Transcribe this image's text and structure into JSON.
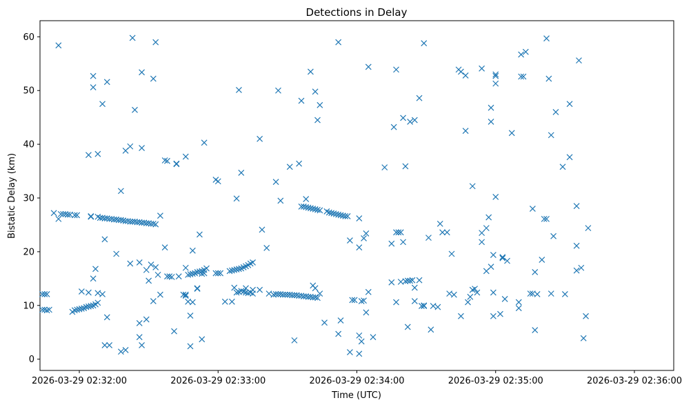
{
  "chart_data": {
    "type": "scatter",
    "title": "Detections in Delay",
    "xlabel": "Time (UTC)",
    "ylabel": "Bistatic Delay (km)",
    "x_ticks": [
      "2026-03-29 02:32:00",
      "2026-03-29 02:33:00",
      "2026-03-29 02:34:00",
      "2026-03-29 02:35:00",
      "2026-03-29 02:36:00"
    ],
    "y_ticks": [
      0,
      10,
      20,
      30,
      40,
      50,
      60
    ],
    "xlim": [
      "2026-03-29 02:31:43",
      "2026-03-29 02:36:17"
    ],
    "ylim": [
      -2.1,
      63
    ],
    "marker": "x",
    "color": "#1f77b4",
    "grid": false,
    "points": [
      [
        "02:31:44",
        12.1
      ],
      [
        "02:31:45",
        12.1
      ],
      [
        "02:31:46",
        12.1
      ],
      [
        "02:31:44",
        9.2
      ],
      [
        "02:31:45",
        9.2
      ],
      [
        "02:31:46",
        9.1
      ],
      [
        "02:31:47",
        9.2
      ],
      [
        "02:31:49",
        27.2
      ],
      [
        "02:31:51",
        26.1
      ],
      [
        "02:31:52",
        27.0
      ],
      [
        "02:31:53",
        27.0
      ],
      [
        "02:31:54",
        27.0
      ],
      [
        "02:31:55",
        26.9
      ],
      [
        "02:31:56",
        26.9
      ],
      [
        "02:31:58",
        26.8
      ],
      [
        "02:31:59",
        26.8
      ],
      [
        "02:31:51",
        58.4
      ],
      [
        "02:31:57",
        8.8
      ],
      [
        "02:31:58",
        9.1
      ],
      [
        "02:31:59",
        9.2
      ],
      [
        "02:32:00",
        9.3
      ],
      [
        "02:32:01",
        9.4
      ],
      [
        "02:32:02",
        9.5
      ],
      [
        "02:32:03",
        9.7
      ],
      [
        "02:32:04",
        9.8
      ],
      [
        "02:32:05",
        9.9
      ],
      [
        "02:32:06",
        10.0
      ],
      [
        "02:32:07",
        10.2
      ],
      [
        "02:32:08",
        10.5
      ],
      [
        "02:32:01",
        12.6
      ],
      [
        "02:32:04",
        12.4
      ],
      [
        "02:32:06",
        15.0
      ],
      [
        "02:32:07",
        16.8
      ],
      [
        "02:32:08",
        12.3
      ],
      [
        "02:32:10",
        12.1
      ],
      [
        "02:32:04",
        38.0
      ],
      [
        "02:32:05",
        26.5
      ],
      [
        "02:32:05",
        26.6
      ],
      [
        "02:32:06",
        52.7
      ],
      [
        "02:32:06",
        50.6
      ],
      [
        "02:32:08",
        38.2
      ],
      [
        "02:32:10",
        47.5
      ],
      [
        "02:32:11",
        22.3
      ],
      [
        "02:32:12",
        51.6
      ],
      [
        "02:32:11",
        2.6
      ],
      [
        "02:32:13",
        2.6
      ],
      [
        "02:32:12",
        7.8
      ],
      [
        "02:32:08",
        26.5
      ],
      [
        "02:32:09",
        26.3
      ],
      [
        "02:32:10",
        26.3
      ],
      [
        "02:32:11",
        26.2
      ],
      [
        "02:32:12",
        26.2
      ],
      [
        "02:32:13",
        26.1
      ],
      [
        "02:32:14",
        26.1
      ],
      [
        "02:32:15",
        26.0
      ],
      [
        "02:32:16",
        26.0
      ],
      [
        "02:32:17",
        25.9
      ],
      [
        "02:32:18",
        25.9
      ],
      [
        "02:32:19",
        25.8
      ],
      [
        "02:32:20",
        25.7
      ],
      [
        "02:32:21",
        25.7
      ],
      [
        "02:32:22",
        25.6
      ],
      [
        "02:32:23",
        25.6
      ],
      [
        "02:32:24",
        25.6
      ],
      [
        "02:32:25",
        25.5
      ],
      [
        "02:32:26",
        25.5
      ],
      [
        "02:32:27",
        25.4
      ],
      [
        "02:32:28",
        25.4
      ],
      [
        "02:32:29",
        25.3
      ],
      [
        "02:32:30",
        25.3
      ],
      [
        "02:32:31",
        25.2
      ],
      [
        "02:32:32",
        25.2
      ],
      [
        "02:32:33",
        25.1
      ],
      [
        "02:32:16",
        19.6
      ],
      [
        "02:32:18",
        31.3
      ],
      [
        "02:32:18",
        1.4
      ],
      [
        "02:32:20",
        1.7
      ],
      [
        "02:32:20",
        38.8
      ],
      [
        "02:32:22",
        17.8
      ],
      [
        "02:32:22",
        39.6
      ],
      [
        "02:32:23",
        59.8
      ],
      [
        "02:32:24",
        46.4
      ],
      [
        "02:32:26",
        18.0
      ],
      [
        "02:32:26",
        6.7
      ],
      [
        "02:32:26",
        4.1
      ],
      [
        "02:32:27",
        53.4
      ],
      [
        "02:32:27",
        39.3
      ],
      [
        "02:32:27",
        2.6
      ],
      [
        "02:32:29",
        7.4
      ],
      [
        "02:32:29",
        16.6
      ],
      [
        "02:32:30",
        14.6
      ],
      [
        "02:32:31",
        17.6
      ],
      [
        "02:32:32",
        52.2
      ],
      [
        "02:32:32",
        10.8
      ],
      [
        "02:32:33",
        59.0
      ],
      [
        "02:32:33",
        17.1
      ],
      [
        "02:32:34",
        15.7
      ],
      [
        "02:32:35",
        12.0
      ],
      [
        "02:32:35",
        26.7
      ],
      [
        "02:32:37",
        20.8
      ],
      [
        "02:32:37",
        37.0
      ],
      [
        "02:32:38",
        36.9
      ],
      [
        "02:32:38",
        15.4
      ],
      [
        "02:32:39",
        15.4
      ],
      [
        "02:32:40",
        15.3
      ],
      [
        "02:32:41",
        5.2
      ],
      [
        "02:32:42",
        36.4
      ],
      [
        "02:32:42",
        36.3
      ],
      [
        "02:32:43",
        15.4
      ],
      [
        "02:32:46",
        37.7
      ],
      [
        "02:32:45",
        12.0
      ],
      [
        "02:32:46",
        12.0
      ],
      [
        "02:32:46",
        17.0
      ],
      [
        "02:32:46",
        11.8
      ],
      [
        "02:32:47",
        10.7
      ],
      [
        "02:32:48",
        8.1
      ],
      [
        "02:32:48",
        2.4
      ],
      [
        "02:32:49",
        20.2
      ],
      [
        "02:32:49",
        10.6
      ],
      [
        "02:32:51",
        13.2
      ],
      [
        "02:32:51",
        13.1
      ],
      [
        "02:32:52",
        23.2
      ],
      [
        "02:32:53",
        3.7
      ],
      [
        "02:32:54",
        40.3
      ],
      [
        "02:32:47",
        15.7
      ],
      [
        "02:32:48",
        15.8
      ],
      [
        "02:32:49",
        15.9
      ],
      [
        "02:32:50",
        16.0
      ],
      [
        "02:32:51",
        16.2
      ],
      [
        "02:32:52",
        16.3
      ],
      [
        "02:32:53",
        16.4
      ],
      [
        "02:32:54",
        16.6
      ],
      [
        "02:32:55",
        16.9
      ],
      [
        "02:32:54",
        16.0
      ],
      [
        "02:32:53",
        15.9
      ],
      [
        "02:32:59",
        33.4
      ],
      [
        "02:33:00",
        33.1
      ],
      [
        "02:32:59",
        16.0
      ],
      [
        "02:33:00",
        16.0
      ],
      [
        "02:33:01",
        16.0
      ],
      [
        "02:33:03",
        10.7
      ],
      [
        "02:33:06",
        10.7
      ],
      [
        "02:33:05",
        16.4
      ],
      [
        "02:33:06",
        16.5
      ],
      [
        "02:33:07",
        16.6
      ],
      [
        "02:33:08",
        16.7
      ],
      [
        "02:33:09",
        16.8
      ],
      [
        "02:33:10",
        16.9
      ],
      [
        "02:33:11",
        17.1
      ],
      [
        "02:33:12",
        17.3
      ],
      [
        "02:33:13",
        17.5
      ],
      [
        "02:33:14",
        17.8
      ],
      [
        "02:33:15",
        18.0
      ],
      [
        "02:33:07",
        13.3
      ],
      [
        "02:33:08",
        12.4
      ],
      [
        "02:33:09",
        12.5
      ],
      [
        "02:33:10",
        12.7
      ],
      [
        "02:33:11",
        12.6
      ],
      [
        "02:33:12",
        12.4
      ],
      [
        "02:33:12",
        13.2
      ],
      [
        "02:33:13",
        12.3
      ],
      [
        "02:33:14",
        12.4
      ],
      [
        "02:33:15",
        12.2
      ],
      [
        "02:33:15",
        12.9
      ],
      [
        "02:33:18",
        12.9
      ],
      [
        "02:33:08",
        29.9
      ],
      [
        "02:33:09",
        50.1
      ],
      [
        "02:33:10",
        34.7
      ],
      [
        "02:33:18",
        41.0
      ],
      [
        "02:33:19",
        24.1
      ],
      [
        "02:33:21",
        20.7
      ],
      [
        "02:33:22",
        12.2
      ],
      [
        "02:33:24",
        12.0
      ],
      [
        "02:33:25",
        12.1
      ],
      [
        "02:33:26",
        12.1
      ],
      [
        "02:33:27",
        12.1
      ],
      [
        "02:33:28",
        12.0
      ],
      [
        "02:33:29",
        12.0
      ],
      [
        "02:33:30",
        12.0
      ],
      [
        "02:33:31",
        12.0
      ],
      [
        "02:33:32",
        11.9
      ],
      [
        "02:33:33",
        11.9
      ],
      [
        "02:33:34",
        11.9
      ],
      [
        "02:33:35",
        11.8
      ],
      [
        "02:33:36",
        11.8
      ],
      [
        "02:33:37",
        11.7
      ],
      [
        "02:33:38",
        11.7
      ],
      [
        "02:33:39",
        11.6
      ],
      [
        "02:33:40",
        11.6
      ],
      [
        "02:33:41",
        11.5
      ],
      [
        "02:33:42",
        11.5
      ],
      [
        "02:33:43",
        11.4
      ],
      [
        "02:33:44",
        12.2
      ],
      [
        "02:33:25",
        33.0
      ],
      [
        "02:33:26",
        50.0
      ],
      [
        "02:33:27",
        29.5
      ],
      [
        "02:33:31",
        35.8
      ],
      [
        "02:33:33",
        3.5
      ],
      [
        "02:33:35",
        36.4
      ],
      [
        "02:33:36",
        48.1
      ],
      [
        "02:33:38",
        29.8
      ],
      [
        "02:33:40",
        53.5
      ],
      [
        "02:33:41",
        13.7
      ],
      [
        "02:33:42",
        13.2
      ],
      [
        "02:33:42",
        49.8
      ],
      [
        "02:33:43",
        44.5
      ],
      [
        "02:33:44",
        47.3
      ],
      [
        "02:33:46",
        6.8
      ],
      [
        "02:33:36",
        28.4
      ],
      [
        "02:33:37",
        28.4
      ],
      [
        "02:33:38",
        28.3
      ],
      [
        "02:33:39",
        28.2
      ],
      [
        "02:33:40",
        28.1
      ],
      [
        "02:33:41",
        28.0
      ],
      [
        "02:33:42",
        27.9
      ],
      [
        "02:33:43",
        27.8
      ],
      [
        "02:33:44",
        27.7
      ],
      [
        "02:33:47",
        27.5
      ],
      [
        "02:33:48",
        27.3
      ],
      [
        "02:33:49",
        27.2
      ],
      [
        "02:33:50",
        27.1
      ],
      [
        "02:33:51",
        27.0
      ],
      [
        "02:33:52",
        26.9
      ],
      [
        "02:33:53",
        26.8
      ],
      [
        "02:33:54",
        26.7
      ],
      [
        "02:33:55",
        26.6
      ],
      [
        "02:33:56",
        26.6
      ],
      [
        "02:33:52",
        59.0
      ],
      [
        "02:33:52",
        4.7
      ],
      [
        "02:33:53",
        7.2
      ],
      [
        "02:33:57",
        22.1
      ],
      [
        "02:33:57",
        1.3
      ],
      [
        "02:33:58",
        11.0
      ],
      [
        "02:33:59",
        11.0
      ],
      [
        "02:34:01",
        26.2
      ],
      [
        "02:34:01",
        20.8
      ],
      [
        "02:34:01",
        4.4
      ],
      [
        "02:34:01",
        1.0
      ],
      [
        "02:34:02",
        3.3
      ],
      [
        "02:34:02",
        10.8
      ],
      [
        "02:34:03",
        22.5
      ],
      [
        "02:34:03",
        10.9
      ],
      [
        "02:34:04",
        23.4
      ],
      [
        "02:34:04",
        8.7
      ],
      [
        "02:34:05",
        12.5
      ],
      [
        "02:34:05",
        54.4
      ],
      [
        "02:34:07",
        4.1
      ],
      [
        "02:34:12",
        35.7
      ],
      [
        "02:34:15",
        21.5
      ],
      [
        "02:34:15",
        14.3
      ],
      [
        "02:34:16",
        43.2
      ],
      [
        "02:34:17",
        53.9
      ],
      [
        "02:34:17",
        23.6
      ],
      [
        "02:34:17",
        10.6
      ],
      [
        "02:34:18",
        23.6
      ],
      [
        "02:34:19",
        23.6
      ],
      [
        "02:34:19",
        14.4
      ],
      [
        "02:34:20",
        44.9
      ],
      [
        "02:34:20",
        21.8
      ],
      [
        "02:34:21",
        35.9
      ],
      [
        "02:34:21",
        14.5
      ],
      [
        "02:34:22",
        6.0
      ],
      [
        "02:34:22",
        14.6
      ],
      [
        "02:34:23",
        44.2
      ],
      [
        "02:34:23",
        14.6
      ],
      [
        "02:34:24",
        14.7
      ],
      [
        "02:34:25",
        44.5
      ],
      [
        "02:34:25",
        13.3
      ],
      [
        "02:34:25",
        10.8
      ],
      [
        "02:34:27",
        48.6
      ],
      [
        "02:34:27",
        14.7
      ],
      [
        "02:34:28",
        9.9
      ],
      [
        "02:34:29",
        10.0
      ],
      [
        "02:34:29",
        9.9
      ],
      [
        "02:34:29",
        58.8
      ],
      [
        "02:34:31",
        22.6
      ],
      [
        "02:34:32",
        5.5
      ],
      [
        "02:34:33",
        9.9
      ],
      [
        "02:34:35",
        9.7
      ],
      [
        "02:34:36",
        25.2
      ],
      [
        "02:34:37",
        23.6
      ],
      [
        "02:34:39",
        23.6
      ],
      [
        "02:34:40",
        12.2
      ],
      [
        "02:34:41",
        19.6
      ],
      [
        "02:34:42",
        12.0
      ],
      [
        "02:34:44",
        53.9
      ],
      [
        "02:34:45",
        53.5
      ],
      [
        "02:34:45",
        8.0
      ],
      [
        "02:34:47",
        52.8
      ],
      [
        "02:34:47",
        42.5
      ],
      [
        "02:34:48",
        10.6
      ],
      [
        "02:34:49",
        11.6
      ],
      [
        "02:34:50",
        12.9
      ],
      [
        "02:34:50",
        32.2
      ],
      [
        "02:34:51",
        13.1
      ],
      [
        "02:34:52",
        12.4
      ],
      [
        "02:34:54",
        54.1
      ],
      [
        "02:34:54",
        23.5
      ],
      [
        "02:34:54",
        21.8
      ],
      [
        "02:34:56",
        16.4
      ],
      [
        "02:34:56",
        24.4
      ],
      [
        "02:34:57",
        26.4
      ],
      [
        "02:34:58",
        17.2
      ],
      [
        "02:34:58",
        46.8
      ],
      [
        "02:34:58",
        44.2
      ],
      [
        "02:34:59",
        19.4
      ],
      [
        "02:34:59",
        12.4
      ],
      [
        "02:34:59",
        8.0
      ],
      [
        "02:35:00",
        53.0
      ],
      [
        "02:35:00",
        51.3
      ],
      [
        "02:35:00",
        52.7
      ],
      [
        "02:35:00",
        30.2
      ],
      [
        "02:35:02",
        8.4
      ],
      [
        "02:35:03",
        18.8
      ],
      [
        "02:35:03",
        19.0
      ],
      [
        "02:35:04",
        11.2
      ],
      [
        "02:35:05",
        18.3
      ],
      [
        "02:35:07",
        42.1
      ],
      [
        "02:35:10",
        10.6
      ],
      [
        "02:35:10",
        9.5
      ],
      [
        "02:35:11",
        56.7
      ],
      [
        "02:35:11",
        52.6
      ],
      [
        "02:35:12",
        52.6
      ],
      [
        "02:35:13",
        57.2
      ],
      [
        "02:35:15",
        12.2
      ],
      [
        "02:35:16",
        28.0
      ],
      [
        "02:35:16",
        12.2
      ],
      [
        "02:35:17",
        16.2
      ],
      [
        "02:35:17",
        5.4
      ],
      [
        "02:35:18",
        12.1
      ],
      [
        "02:35:20",
        18.5
      ],
      [
        "02:35:21",
        26.1
      ],
      [
        "02:35:22",
        26.1
      ],
      [
        "02:35:22",
        59.7
      ],
      [
        "02:35:23",
        52.2
      ],
      [
        "02:35:24",
        12.2
      ],
      [
        "02:35:24",
        41.7
      ],
      [
        "02:35:25",
        22.9
      ],
      [
        "02:35:26",
        46.0
      ],
      [
        "02:35:29",
        35.8
      ],
      [
        "02:35:30",
        12.1
      ],
      [
        "02:35:32",
        37.6
      ],
      [
        "02:35:32",
        47.5
      ],
      [
        "02:35:35",
        28.5
      ],
      [
        "02:35:35",
        21.1
      ],
      [
        "02:35:35",
        16.5
      ],
      [
        "02:35:36",
        55.6
      ],
      [
        "02:35:37",
        17.0
      ],
      [
        "02:35:38",
        3.9
      ],
      [
        "02:35:39",
        8.0
      ],
      [
        "02:35:40",
        24.4
      ]
    ]
  }
}
